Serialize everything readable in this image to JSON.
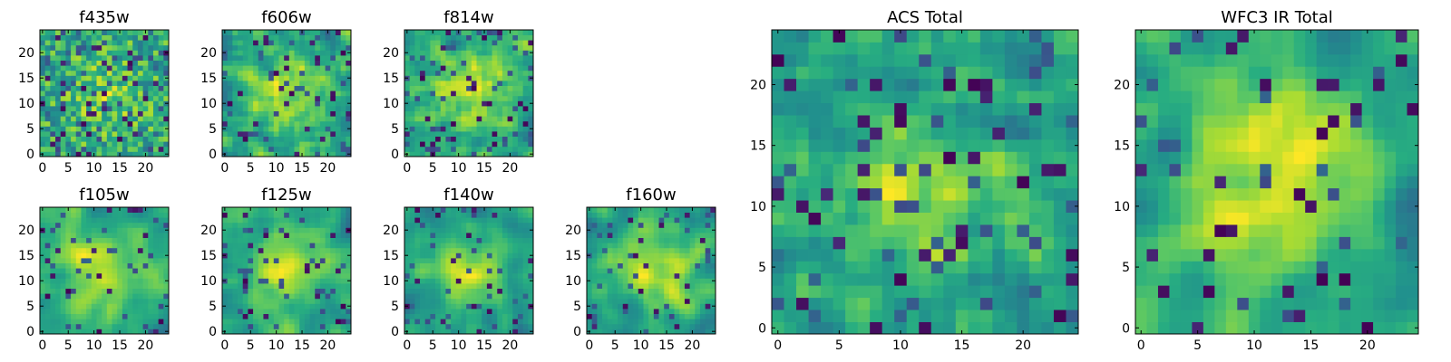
{
  "chart_data": [
    {
      "type": "heatmap",
      "id": "f435w",
      "title": "f435w",
      "size": 25,
      "seed": 11,
      "smooth": 0,
      "dark_frac": 0.06,
      "xticks": [
        0,
        5,
        10,
        15,
        20
      ],
      "yticks": [
        0,
        5,
        10,
        15,
        20
      ],
      "xlim": [
        -0.5,
        24.5
      ],
      "ylim": [
        -0.5,
        24.5
      ],
      "colormap": "viridis"
    },
    {
      "type": "heatmap",
      "id": "f606w",
      "title": "f606w",
      "size": 25,
      "seed": 23,
      "smooth": 1,
      "dark_frac": 0.05,
      "xticks": [
        0,
        5,
        10,
        15,
        20
      ],
      "yticks": [
        0,
        5,
        10,
        15,
        20
      ],
      "xlim": [
        -0.5,
        24.5
      ],
      "ylim": [
        -0.5,
        24.5
      ],
      "colormap": "viridis"
    },
    {
      "type": "heatmap",
      "id": "f814w",
      "title": "f814w",
      "size": 25,
      "seed": 37,
      "smooth": 1,
      "dark_frac": 0.05,
      "xticks": [
        0,
        5,
        10,
        15,
        20
      ],
      "yticks": [
        0,
        5,
        10,
        15,
        20
      ],
      "xlim": [
        -0.5,
        24.5
      ],
      "ylim": [
        -0.5,
        24.5
      ],
      "colormap": "viridis"
    },
    {
      "type": "heatmap",
      "id": "f105w",
      "title": "f105w",
      "size": 25,
      "seed": 41,
      "smooth": 2,
      "dark_frac": 0.04,
      "xticks": [
        0,
        5,
        10,
        15,
        20
      ],
      "yticks": [
        0,
        5,
        10,
        15,
        20
      ],
      "xlim": [
        -0.5,
        24.5
      ],
      "ylim": [
        -0.5,
        24.5
      ],
      "colormap": "viridis"
    },
    {
      "type": "heatmap",
      "id": "f125w",
      "title": "f125w",
      "size": 25,
      "seed": 53,
      "smooth": 2,
      "dark_frac": 0.04,
      "xticks": [
        0,
        5,
        10,
        15,
        20
      ],
      "yticks": [
        0,
        5,
        10,
        15,
        20
      ],
      "xlim": [
        -0.5,
        24.5
      ],
      "ylim": [
        -0.5,
        24.5
      ],
      "colormap": "viridis"
    },
    {
      "type": "heatmap",
      "id": "f140w",
      "title": "f140w",
      "size": 25,
      "seed": 67,
      "smooth": 2,
      "dark_frac": 0.04,
      "xticks": [
        0,
        5,
        10,
        15,
        20
      ],
      "yticks": [
        0,
        5,
        10,
        15,
        20
      ],
      "xlim": [
        -0.5,
        24.5
      ],
      "ylim": [
        -0.5,
        24.5
      ],
      "colormap": "viridis"
    },
    {
      "type": "heatmap",
      "id": "f160w",
      "title": "f160w",
      "size": 25,
      "seed": 79,
      "smooth": 2,
      "dark_frac": 0.03,
      "xticks": [
        0,
        5,
        10,
        15,
        20
      ],
      "yticks": [
        0,
        5,
        10,
        15,
        20
      ],
      "xlim": [
        -0.5,
        24.5
      ],
      "ylim": [
        -0.5,
        24.5
      ],
      "colormap": "viridis"
    },
    {
      "type": "heatmap",
      "id": "acs-total",
      "title": "ACS Total",
      "size": 25,
      "seed": 97,
      "smooth": 1,
      "dark_frac": 0.05,
      "xticks": [
        0,
        5,
        10,
        15,
        20
      ],
      "yticks": [
        0,
        5,
        10,
        15,
        20
      ],
      "xlim": [
        -0.5,
        24.5
      ],
      "ylim": [
        -0.5,
        24.5
      ],
      "colormap": "viridis"
    },
    {
      "type": "heatmap",
      "id": "wfc3-ir-total",
      "title": "WFC3 IR Total",
      "size": 25,
      "seed": 113,
      "smooth": 2,
      "dark_frac": 0.04,
      "xticks": [
        0,
        5,
        10,
        15,
        20
      ],
      "yticks": [
        0,
        5,
        10,
        15,
        20
      ],
      "xlim": [
        -0.5,
        24.5
      ],
      "ylim": [
        -0.5,
        24.5
      ],
      "colormap": "viridis"
    }
  ]
}
